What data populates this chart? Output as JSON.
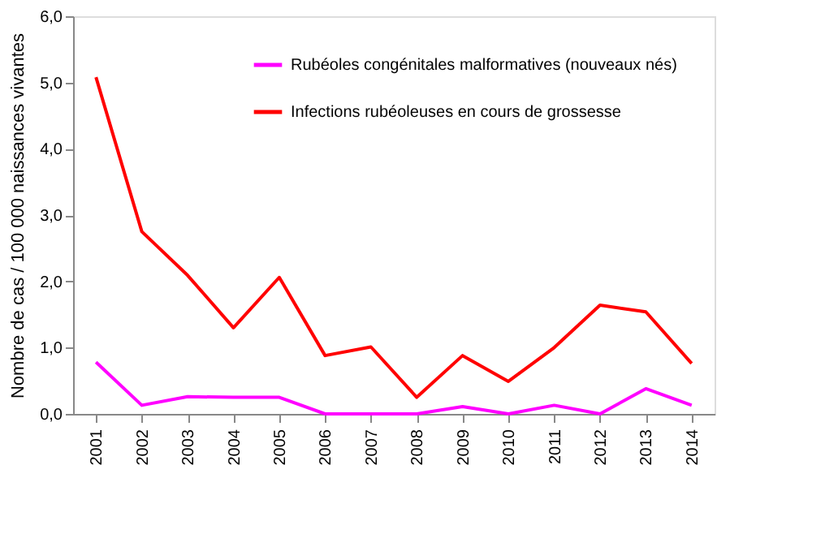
{
  "chart_data": {
    "type": "line",
    "ylabel": "Nombre de cas / 100 000 naissances vivantes",
    "categories": [
      "2001",
      "2002",
      "2003",
      "2004",
      "2005",
      "2006",
      "2007",
      "2008",
      "2009",
      "2010",
      "2011",
      "2012",
      "2013",
      "2014"
    ],
    "series": [
      {
        "name": "Rubéoles congénitales malformatives (nouveaux nés)",
        "color": "#ff00ff",
        "values": [
          0.78,
          0.13,
          0.26,
          0.25,
          0.25,
          0,
          0,
          0,
          0.11,
          0,
          0.13,
          0,
          0.38,
          0.13
        ]
      },
      {
        "name": "Infections rubéoleuses en cours de grossesse",
        "color": "#ff0000",
        "values": [
          5.08,
          2.75,
          2.09,
          1.3,
          2.06,
          0.88,
          1.01,
          0.25,
          0.88,
          0.49,
          1.0,
          1.64,
          1.54,
          0.76
        ]
      }
    ],
    "ylim": [
      0,
      6
    ],
    "yticks": [
      {
        "value": 0,
        "label": "0,0"
      },
      {
        "value": 1,
        "label": "1,0"
      },
      {
        "value": 2,
        "label": "2,0"
      },
      {
        "value": 3,
        "label": "3,0"
      },
      {
        "value": 4,
        "label": "4,0"
      },
      {
        "value": 5,
        "label": "5,0"
      },
      {
        "value": 6,
        "label": "6,0"
      }
    ],
    "grid": false,
    "legend": "top",
    "marker": "none",
    "line_style": "solid"
  }
}
